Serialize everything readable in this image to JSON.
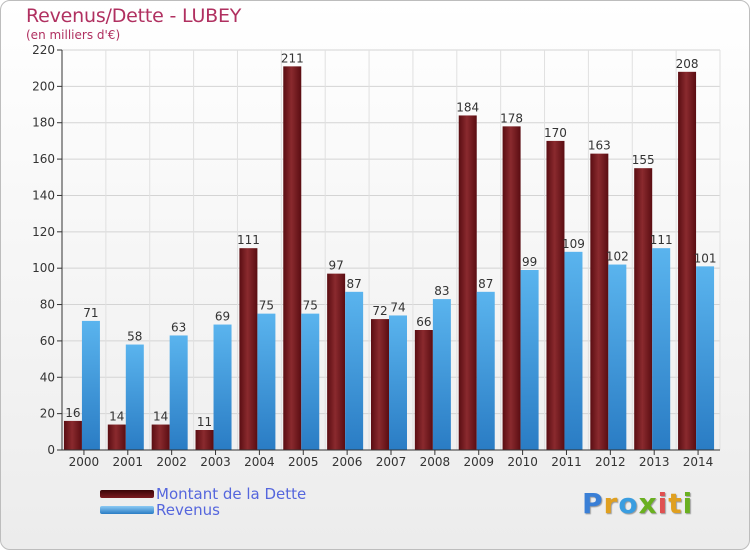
{
  "title": "Revenus/Dette - LUBEY",
  "subtitle": "(en milliers d'€)",
  "legend": [
    {
      "label": "Montant de la Dette",
      "color": "#7a1a1f"
    },
    {
      "label": "Revenus",
      "color": "#3a9de0"
    }
  ],
  "logo": {
    "letters": [
      "P",
      "r",
      "o",
      "x",
      "i",
      "t",
      "i"
    ],
    "colors": [
      "#3a7fd6",
      "#e0a020",
      "#3a9de0",
      "#6ab020",
      "#e05050",
      "#e0a020",
      "#6ab020"
    ]
  },
  "chart_data": {
    "type": "bar",
    "categories": [
      "2000",
      "2001",
      "2002",
      "2003",
      "2004",
      "2005",
      "2006",
      "2007",
      "2008",
      "2009",
      "2010",
      "2011",
      "2012",
      "2013",
      "2014"
    ],
    "series": [
      {
        "name": "Montant de la Dette",
        "color": "#7a1a1f",
        "values": [
          16,
          14,
          14,
          11,
          111,
          211,
          97,
          72,
          66,
          184,
          178,
          170,
          163,
          155,
          208
        ]
      },
      {
        "name": "Revenus",
        "color": "#3a9de0",
        "values": [
          71,
          58,
          63,
          69,
          75,
          75,
          87,
          74,
          83,
          87,
          99,
          109,
          102,
          111,
          101
        ]
      }
    ],
    "yticks": [
      0,
      20,
      40,
      60,
      80,
      100,
      120,
      140,
      160,
      180,
      200,
      220
    ],
    "ylim": [
      0,
      220
    ],
    "grid": true,
    "legend_position": "bottom-left"
  }
}
